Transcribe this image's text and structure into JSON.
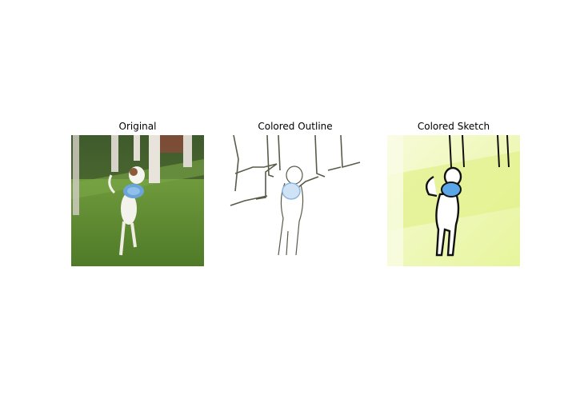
{
  "figure": {
    "panels": [
      {
        "title": "Original"
      },
      {
        "title": "Colored Outline"
      },
      {
        "title": "Colored Sketch"
      }
    ]
  }
}
